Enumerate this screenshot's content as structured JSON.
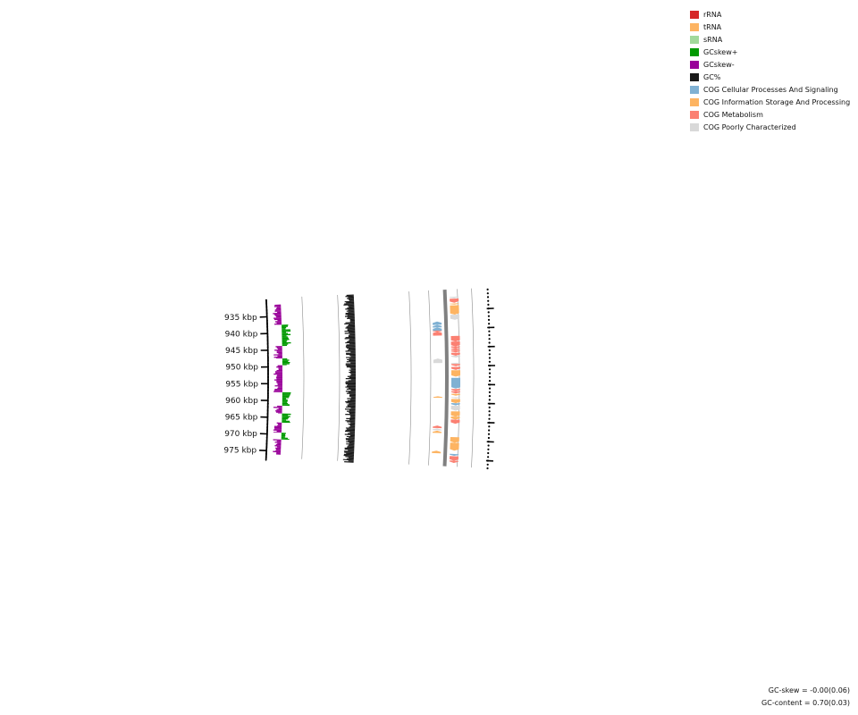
{
  "ruler": {
    "ticks": [
      {
        "kbp": 935,
        "label": "935 kbp"
      },
      {
        "kbp": 940,
        "label": "940 kbp"
      },
      {
        "kbp": 945,
        "label": "945 kbp"
      },
      {
        "kbp": 950,
        "label": "950 kbp"
      },
      {
        "kbp": 955,
        "label": "955 kbp"
      },
      {
        "kbp": 960,
        "label": "960 kbp"
      },
      {
        "kbp": 965,
        "label": "965 kbp"
      },
      {
        "kbp": 970,
        "label": "970 kbp"
      },
      {
        "kbp": 975,
        "label": "975 kbp"
      }
    ]
  },
  "legend": {
    "items": [
      {
        "label": "rRNA",
        "color": "#d62728"
      },
      {
        "label": "tRNA",
        "color": "#fdb462"
      },
      {
        "label": "sRNA",
        "color": "#a1d99b"
      },
      {
        "label": "GCskew+",
        "color": "#009900"
      },
      {
        "label": "GCskew-",
        "color": "#990099"
      },
      {
        "label": "GC%",
        "color": "#1a1a1a"
      },
      {
        "label": "COG Cellular Processes And Signaling",
        "color": "#80b1d3"
      },
      {
        "label": "COG Information Storage And Processing",
        "color": "#fdb462"
      },
      {
        "label": "COG Metabolism",
        "color": "#fb8072"
      },
      {
        "label": "COG Poorly Characterized",
        "color": "#d9d9d9"
      }
    ]
  },
  "stats": {
    "gc_skew": "GC-skew = -0.00(0.06)",
    "gc_content": "GC-content = 0.70(0.03)"
  },
  "chart_data": {
    "type": "circular-genome-map-segment",
    "range_kbp": [
      931.5,
      976
    ],
    "gc_skew_sign_by_kbp": [
      {
        "from": 931.5,
        "to": 937.5,
        "sign": "-"
      },
      {
        "from": 937.5,
        "to": 943.8,
        "sign": "+"
      },
      {
        "from": 943.8,
        "to": 947.5,
        "sign": "-"
      },
      {
        "from": 947.5,
        "to": 949.5,
        "sign": "+"
      },
      {
        "from": 949.5,
        "to": 957.5,
        "sign": "-"
      },
      {
        "from": 957.5,
        "to": 961.5,
        "sign": "+"
      },
      {
        "from": 961.5,
        "to": 963.8,
        "sign": "-"
      },
      {
        "from": 963.8,
        "to": 966.5,
        "sign": "+"
      },
      {
        "from": 966.5,
        "to": 969.5,
        "sign": "-"
      },
      {
        "from": 969.5,
        "to": 971.5,
        "sign": "+"
      },
      {
        "from": 971.5,
        "to": 976,
        "sign": "-"
      }
    ],
    "features": [
      {
        "start": 931.5,
        "end": 931.9,
        "strand": "-",
        "category": "COG Poorly Characterized"
      },
      {
        "start": 932.0,
        "end": 933.1,
        "strand": "-",
        "category": "COG Metabolism"
      },
      {
        "start": 933.3,
        "end": 933.6,
        "strand": "-",
        "category": "COG Information Storage And Processing"
      },
      {
        "start": 933.8,
        "end": 936.3,
        "strand": "-",
        "category": "COG Information Storage And Processing"
      },
      {
        "start": 936.3,
        "end": 937.7,
        "strand": "-",
        "category": "COG Poorly Characterized"
      },
      {
        "start": 938.0,
        "end": 938.9,
        "strand": "+",
        "category": "COG Cellular Processes And Signaling"
      },
      {
        "start": 938.9,
        "end": 939.6,
        "strand": "+",
        "category": "COG Cellular Processes And Signaling"
      },
      {
        "start": 939.6,
        "end": 940.5,
        "strand": "+",
        "category": "COG Cellular Processes And Signaling"
      },
      {
        "start": 940.4,
        "end": 940.7,
        "strand": "+",
        "category": "COG Metabolism"
      },
      {
        "start": 940.7,
        "end": 941.8,
        "strand": "+",
        "category": "COG Metabolism"
      },
      {
        "start": 942.0,
        "end": 943.5,
        "strand": "-",
        "category": "COG Metabolism"
      },
      {
        "start": 943.5,
        "end": 944.8,
        "strand": "-",
        "category": "COG Metabolism"
      },
      {
        "start": 944.8,
        "end": 945.4,
        "strand": "-",
        "category": "COG Metabolism"
      },
      {
        "start": 945.4,
        "end": 945.9,
        "strand": "-",
        "category": "COG Metabolism"
      },
      {
        "start": 945.9,
        "end": 946.4,
        "strand": "-",
        "category": "COG Metabolism"
      },
      {
        "start": 946.5,
        "end": 947.3,
        "strand": "-",
        "category": "COG Metabolism"
      },
      {
        "start": 947.3,
        "end": 947.8,
        "strand": "-",
        "category": "COG Poorly Characterized"
      },
      {
        "start": 948.0,
        "end": 949.2,
        "strand": "+",
        "category": "COG Poorly Characterized"
      },
      {
        "start": 949.2,
        "end": 949.5,
        "strand": "-",
        "category": "COG Poorly Characterized"
      },
      {
        "start": 949.5,
        "end": 950.1,
        "strand": "-",
        "category": "COG Metabolism"
      },
      {
        "start": 950.3,
        "end": 951.1,
        "strand": "-",
        "category": "COG Metabolism"
      },
      {
        "start": 951.2,
        "end": 952.9,
        "strand": "-",
        "category": "COG Information Storage And Processing"
      },
      {
        "start": 953.2,
        "end": 956.1,
        "strand": "-",
        "category": "COG Cellular Processes And Signaling"
      },
      {
        "start": 956.2,
        "end": 956.8,
        "strand": "-",
        "category": "COG Metabolism"
      },
      {
        "start": 956.8,
        "end": 957.4,
        "strand": "-",
        "category": "COG Metabolism"
      },
      {
        "start": 957.5,
        "end": 958.0,
        "strand": "-",
        "category": "COG Information Storage And Processing"
      },
      {
        "start": 958.2,
        "end": 958.6,
        "strand": "+",
        "category": "COG Information Storage And Processing"
      },
      {
        "start": 958.4,
        "end": 958.7,
        "strand": "-",
        "category": "COG Poorly Characterized"
      },
      {
        "start": 958.9,
        "end": 960.0,
        "strand": "-",
        "category": "COG Information Storage And Processing"
      },
      {
        "start": 960.0,
        "end": 960.6,
        "strand": "-",
        "category": "COG Cellular Processes And Signaling"
      },
      {
        "start": 960.7,
        "end": 962.0,
        "strand": "-",
        "category": "COG Poorly Characterized"
      },
      {
        "start": 962.2,
        "end": 963.6,
        "strand": "-",
        "category": "COG Information Storage And Processing"
      },
      {
        "start": 963.6,
        "end": 964.4,
        "strand": "-",
        "category": "COG Information Storage And Processing"
      },
      {
        "start": 964.4,
        "end": 965.5,
        "strand": "-",
        "category": "COG Metabolism"
      },
      {
        "start": 966.1,
        "end": 966.8,
        "strand": "+",
        "category": "COG Metabolism"
      },
      {
        "start": 966.9,
        "end": 967.4,
        "strand": "+",
        "category": "COG Poorly Characterized"
      },
      {
        "start": 967.5,
        "end": 968.1,
        "strand": "+",
        "category": "COG Information Storage And Processing"
      },
      {
        "start": 969.1,
        "end": 970.6,
        "strand": "-",
        "category": "COG Information Storage And Processing"
      },
      {
        "start": 970.6,
        "end": 972.7,
        "strand": "-",
        "category": "COG Information Storage And Processing"
      },
      {
        "start": 972.9,
        "end": 973.6,
        "strand": "+",
        "category": "COG Information Storage And Processing"
      },
      {
        "start": 973.6,
        "end": 974.1,
        "strand": "-",
        "category": "COG Cellular Processes And Signaling"
      },
      {
        "start": 974.2,
        "end": 975.4,
        "strand": "-",
        "category": "COG Metabolism"
      },
      {
        "start": 975.4,
        "end": 976.0,
        "strand": "-",
        "category": "COG Metabolism"
      }
    ]
  }
}
